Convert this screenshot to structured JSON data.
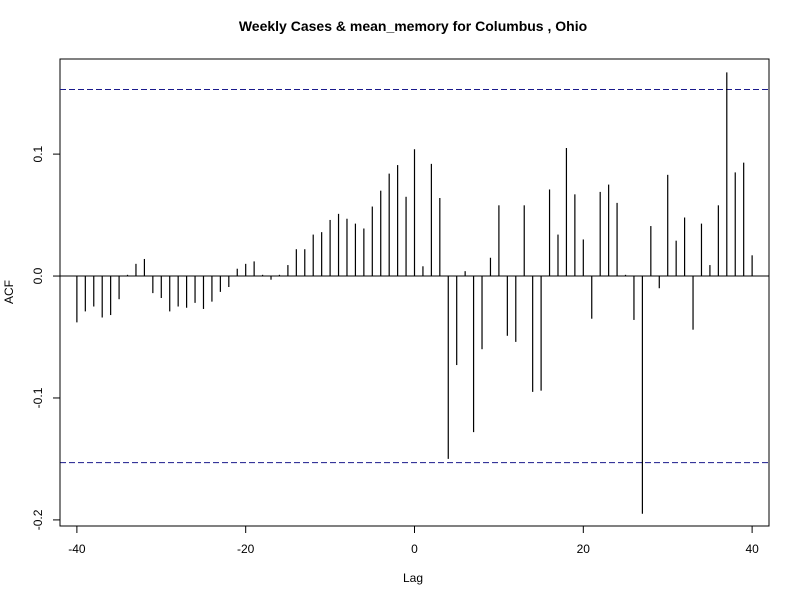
{
  "chart_data": {
    "type": "bar",
    "title": "Weekly Cases & mean_memory for Columbus , Ohio",
    "xlabel": "Lag",
    "ylabel": "ACF",
    "xlim": [
      -42,
      42
    ],
    "ylim": [
      -0.205,
      0.178
    ],
    "xticks": [
      -40,
      -20,
      0,
      20,
      40
    ],
    "xtick_labels": [
      "-40",
      "-20",
      "0",
      "20",
      "40"
    ],
    "yticks": [
      -0.2,
      -0.1,
      0.0,
      0.1
    ],
    "ytick_labels": [
      "-0.2",
      "-0.1",
      "0.0",
      "0.1"
    ],
    "confidence_bounds": [
      0.153,
      -0.153
    ],
    "grid": false,
    "x": [
      -40,
      -39,
      -38,
      -37,
      -36,
      -35,
      -34,
      -33,
      -32,
      -31,
      -30,
      -29,
      -28,
      -27,
      -26,
      -25,
      -24,
      -23,
      -22,
      -21,
      -20,
      -19,
      -18,
      -17,
      -16,
      -15,
      -14,
      -13,
      -12,
      -11,
      -10,
      -9,
      -8,
      -7,
      -6,
      -5,
      -4,
      -3,
      -2,
      -1,
      0,
      1,
      2,
      3,
      4,
      5,
      6,
      7,
      8,
      9,
      10,
      11,
      12,
      13,
      14,
      15,
      16,
      17,
      18,
      19,
      20,
      21,
      22,
      23,
      24,
      25,
      26,
      27,
      28,
      29,
      30,
      31,
      32,
      33,
      34,
      35,
      36,
      37,
      38,
      39,
      40
    ],
    "values": [
      -0.038,
      -0.029,
      -0.025,
      -0.034,
      -0.032,
      -0.019,
      0.001,
      0.01,
      0.014,
      -0.014,
      -0.018,
      -0.029,
      -0.025,
      -0.026,
      -0.022,
      -0.027,
      -0.021,
      -0.013,
      -0.009,
      0.006,
      0.01,
      0.012,
      0.001,
      -0.003,
      0.001,
      0.009,
      0.022,
      0.022,
      0.034,
      0.036,
      0.046,
      0.051,
      0.047,
      0.043,
      0.039,
      0.057,
      0.07,
      0.084,
      0.091,
      0.065,
      0.104,
      0.008,
      0.092,
      0.064,
      -0.15,
      -0.073,
      0.004,
      -0.128,
      -0.06,
      0.015,
      0.058,
      -0.049,
      -0.054,
      0.058,
      -0.095,
      -0.094,
      0.071,
      0.034,
      0.105,
      0.067,
      0.03,
      -0.035,
      0.069,
      0.075,
      0.06,
      0.001,
      -0.036,
      -0.195,
      0.041,
      -0.01,
      0.083,
      0.029,
      0.048,
      -0.044,
      0.043,
      0.009,
      0.058,
      0.167,
      0.085,
      0.093,
      0.017
    ]
  }
}
